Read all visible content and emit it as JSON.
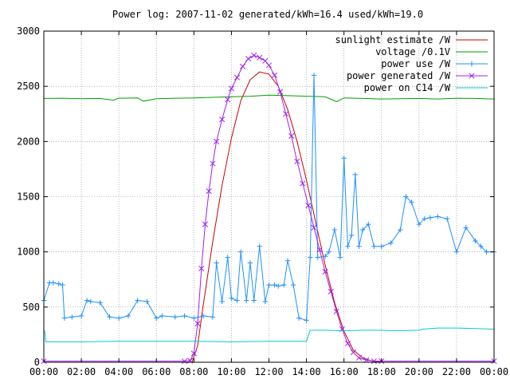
{
  "chart_data": {
    "type": "line",
    "title": "Power log: 2007-11-02 generated/kWh=16.4 used/kWh=19.0",
    "xlabel": "",
    "ylabel": "",
    "xlim": [
      0,
      24
    ],
    "ylim": [
      0,
      3000
    ],
    "x_ticks": [
      "00:00",
      "02:00",
      "04:00",
      "06:00",
      "08:00",
      "10:00",
      "12:00",
      "14:00",
      "16:00",
      "18:00",
      "20:00",
      "22:00",
      "00:00"
    ],
    "y_ticks": [
      "0",
      "500",
      "1000",
      "1500",
      "2000",
      "2500",
      "3000"
    ],
    "grid": true,
    "legend_position": "top-right",
    "colors": {
      "sunlight": "#cc0000",
      "voltage": "#00a000",
      "power_use": "#1e90ff",
      "power_generated": "#a020f0",
      "power_c14": "#00cccc",
      "grid": "#888888",
      "axis": "#000000"
    },
    "series": [
      {
        "name": "sunlight estimate /W",
        "marker": "none",
        "x": [
          0,
          7.9,
          8.2,
          8.5,
          9.0,
          9.5,
          10.0,
          10.5,
          11.0,
          11.5,
          12.0,
          12.5,
          13.0,
          13.5,
          14.0,
          14.5,
          15.0,
          15.5,
          16.0,
          16.5,
          17.0,
          17.5,
          18.0,
          24
        ],
        "y": [
          0,
          0,
          150,
          520,
          1090,
          1600,
          2030,
          2370,
          2560,
          2630,
          2610,
          2500,
          2290,
          2000,
          1650,
          1260,
          880,
          540,
          280,
          110,
          40,
          10,
          0,
          0
        ]
      },
      {
        "name": "voltage /0.1V",
        "marker": "none",
        "x": [
          0,
          1,
          2,
          3,
          3.7,
          4,
          5,
          5.3,
          6,
          7,
          8,
          9,
          10,
          11,
          12,
          13,
          14,
          15,
          15.6,
          16,
          17,
          18,
          19,
          20,
          21,
          22,
          23,
          24
        ],
        "y": [
          2390,
          2392,
          2388,
          2390,
          2375,
          2392,
          2395,
          2365,
          2388,
          2392,
          2395,
          2400,
          2405,
          2410,
          2420,
          2415,
          2410,
          2405,
          2360,
          2395,
          2390,
          2385,
          2388,
          2390,
          2385,
          2392,
          2390,
          2385
        ]
      },
      {
        "name": "power use /W",
        "marker": "plus",
        "x": [
          0,
          0.3,
          0.5,
          0.8,
          1.0,
          1.1,
          1.5,
          2.0,
          2.3,
          2.5,
          3.0,
          3.5,
          4.0,
          4.5,
          5.0,
          5.5,
          6.0,
          6.3,
          7.0,
          7.5,
          8.0,
          8.5,
          9.0,
          9.2,
          9.5,
          9.8,
          10.0,
          10.3,
          10.5,
          10.8,
          11.0,
          11.2,
          11.5,
          11.8,
          12.0,
          12.3,
          12.5,
          12.8,
          13.0,
          13.3,
          13.6,
          14.0,
          14.2,
          14.4,
          14.6,
          15.0,
          15.2,
          15.5,
          15.8,
          16.0,
          16.2,
          16.4,
          16.6,
          16.8,
          17.0,
          17.3,
          17.6,
          18.0,
          18.5,
          19.0,
          19.3,
          19.6,
          20.0,
          20.3,
          20.6,
          21.0,
          21.5,
          22.0,
          22.5,
          23.0,
          23.3,
          23.6,
          24.0
        ],
        "y": [
          560,
          720,
          720,
          710,
          700,
          400,
          410,
          420,
          560,
          550,
          540,
          410,
          400,
          420,
          560,
          550,
          400,
          420,
          410,
          420,
          400,
          420,
          410,
          900,
          550,
          950,
          580,
          560,
          1000,
          560,
          900,
          560,
          1050,
          550,
          700,
          700,
          690,
          700,
          920,
          700,
          400,
          380,
          950,
          2600,
          950,
          960,
          1000,
          1200,
          950,
          1850,
          1050,
          1150,
          1700,
          1050,
          1200,
          1250,
          1050,
          1050,
          1080,
          1200,
          1500,
          1450,
          1250,
          1300,
          1310,
          1320,
          1300,
          1000,
          1220,
          1100,
          1050,
          1000,
          1000
        ]
      },
      {
        "name": "power generated /W",
        "marker": "cross",
        "x": [
          0,
          7.5,
          7.8,
          8.0,
          8.2,
          8.4,
          8.6,
          8.8,
          9.0,
          9.2,
          9.5,
          9.8,
          10.0,
          10.3,
          10.6,
          10.9,
          11.2,
          11.5,
          11.8,
          12.0,
          12.3,
          12.6,
          12.9,
          13.2,
          13.5,
          13.8,
          14.1,
          14.4,
          14.7,
          15.0,
          15.3,
          15.6,
          15.9,
          16.2,
          16.5,
          16.8,
          17.2,
          17.6,
          18.0,
          24
        ],
        "y": [
          10,
          10,
          15,
          80,
          350,
          850,
          1250,
          1550,
          1800,
          2000,
          2200,
          2380,
          2480,
          2580,
          2680,
          2750,
          2780,
          2760,
          2730,
          2690,
          2600,
          2450,
          2250,
          2050,
          1820,
          1620,
          1420,
          1220,
          1020,
          820,
          640,
          460,
          300,
          170,
          90,
          40,
          20,
          10,
          10,
          10
        ]
      },
      {
        "name": "power on C14 /W",
        "marker": "none",
        "x": [
          0,
          0.05,
          0.1,
          2,
          4,
          6,
          8,
          10,
          12,
          14,
          14.2,
          15,
          16,
          17,
          18,
          19,
          20,
          20.2,
          21,
          22,
          23,
          24
        ],
        "y": [
          290,
          280,
          185,
          185,
          190,
          190,
          190,
          185,
          190,
          190,
          290,
          290,
          285,
          290,
          290,
          285,
          290,
          300,
          310,
          310,
          305,
          300
        ]
      }
    ]
  }
}
